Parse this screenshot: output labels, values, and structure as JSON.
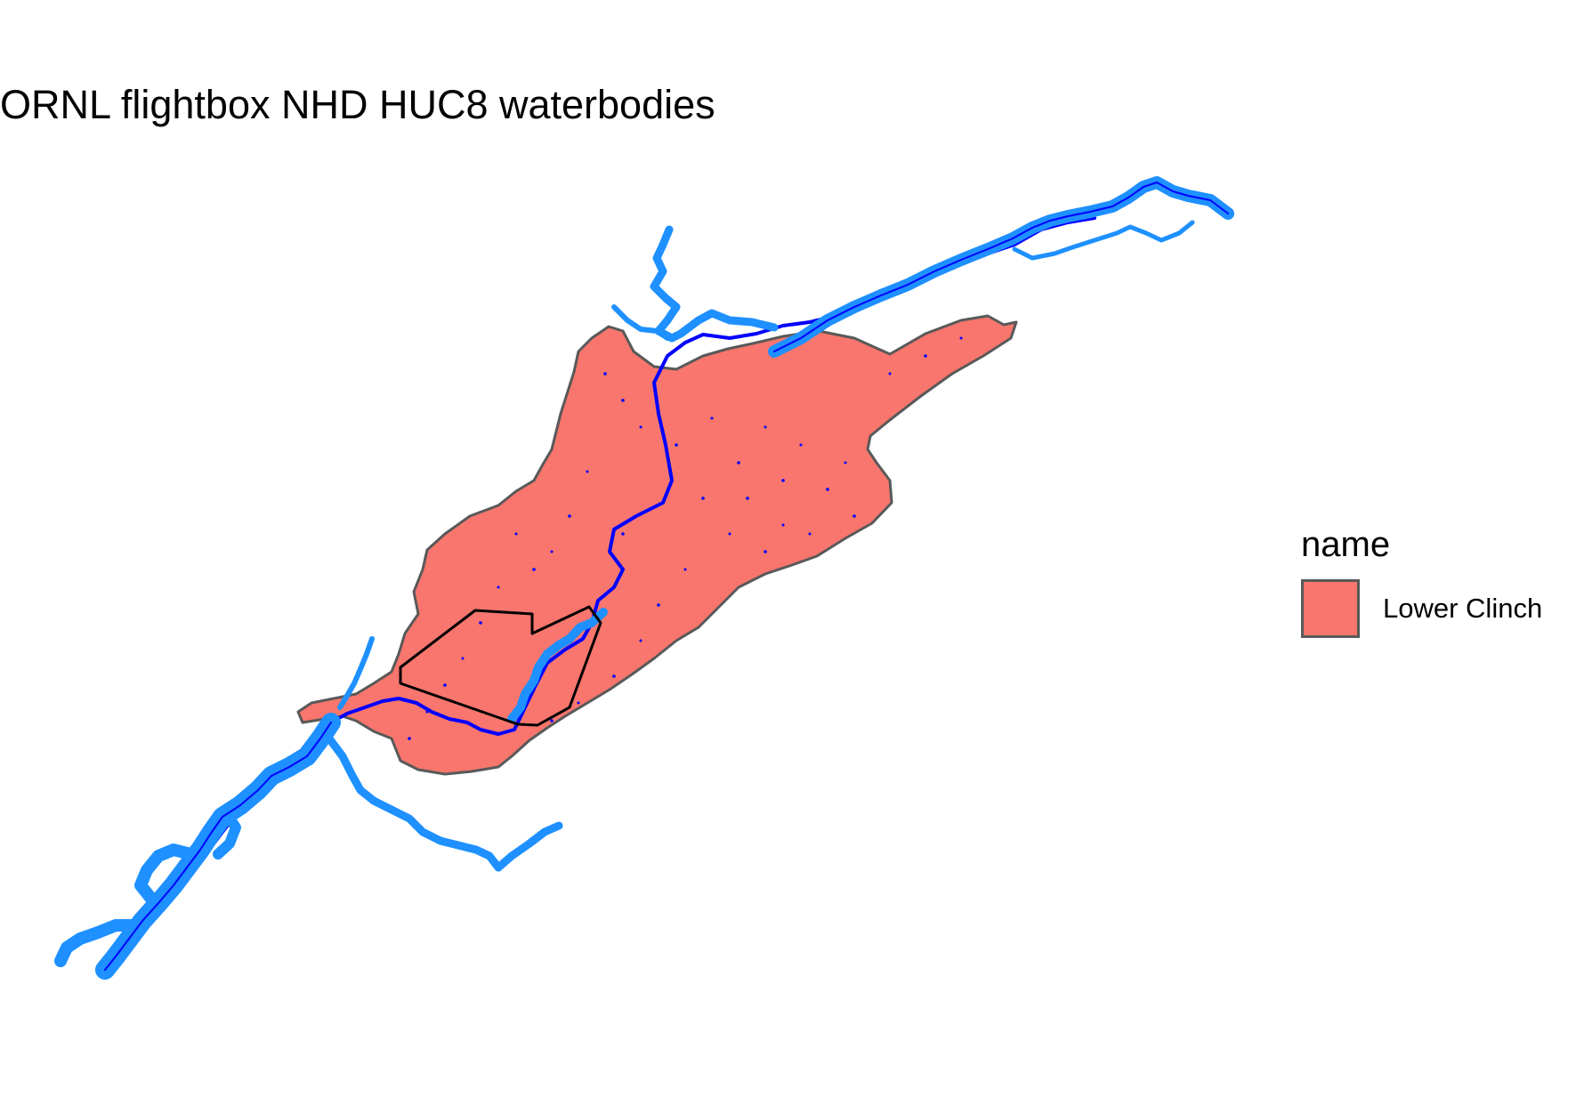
{
  "title": "ORNL flightbox NHD HUC8 waterbodies",
  "legend": {
    "title": "name",
    "items": [
      {
        "label": "Lower Clinch",
        "fill": "#F8766D",
        "border": "#595959"
      }
    ]
  },
  "colors": {
    "huc8_fill": "#F8766D",
    "huc8_border": "#595959",
    "waterbody_fill": "#1E90FF",
    "waterbody_outline": "#0000FF",
    "flightbox_outline": "#000000",
    "background": "#FFFFFF"
  }
}
